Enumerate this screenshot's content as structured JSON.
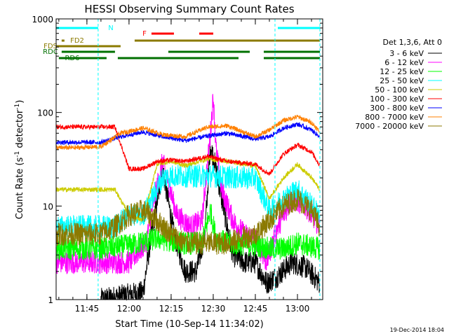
{
  "chart_data": {
    "type": "line",
    "title": "HESSI Observing Summary Count Rates",
    "xlabel": "Start Time (10-Sep-14 11:34:02)",
    "ylabel": "Count Rate (s",
    "ylabel_sup": "-1",
    "ylabel_tail": " detector",
    "ylabel_sup2": "-1",
    "ylabel_end": ")",
    "yscale": "log",
    "xlim": [
      "11:34:02",
      "13:09:00"
    ],
    "ylim": [
      1,
      1000
    ],
    "x_ticks": [
      "11:45",
      "12:00",
      "12:15",
      "12:30",
      "12:45",
      "13:00"
    ],
    "y_ticks": [
      "1",
      "10",
      "100",
      "1000"
    ],
    "legend_title": "Det 1,3,6, Att 0",
    "legend_position": "right",
    "timestamp": "19-Dec-2014 18:04",
    "flags": [
      {
        "label": "N",
        "color": "#00ffff",
        "segments": [
          [
            "11:34",
            "11:49"
          ],
          [
            "12:53",
            "13:08"
          ]
        ]
      },
      {
        "label": "F",
        "color": "#ff0000",
        "segments": [
          [
            "12:08",
            "12:16"
          ],
          [
            "12:25",
            "12:30"
          ]
        ]
      },
      {
        "label": "FD2",
        "color": "#8b7a00",
        "segments": [
          [
            "11:36",
            "11:37"
          ],
          [
            "12:02",
            "13:08"
          ]
        ]
      },
      {
        "label": "FDS",
        "color": "#8b7a00",
        "segments": [
          [
            "11:34",
            "11:57"
          ]
        ]
      },
      {
        "label": "RDC",
        "color": "#007000",
        "segments": [
          [
            "11:36",
            "11:55"
          ],
          [
            "12:14",
            "12:43"
          ],
          [
            "12:48",
            "13:08"
          ]
        ]
      },
      {
        "label": "RD6",
        "color": "#007000",
        "segments": [
          [
            "11:35",
            "11:52"
          ],
          [
            "11:56",
            "12:39"
          ],
          [
            "12:48",
            "13:08"
          ]
        ]
      }
    ],
    "gaps": [
      "11:49",
      "12:52",
      "13:08"
    ],
    "series": [
      {
        "name": "3 - 6 keV",
        "color": "#000000",
        "times": [
          "11:50",
          "12:05",
          "12:08",
          "12:12",
          "12:16",
          "12:20",
          "12:24",
          "12:27",
          "12:29",
          "12:31",
          "12:33",
          "12:37",
          "12:41",
          "12:45",
          "12:49",
          "12:53",
          "12:58",
          "13:03",
          "13:08"
        ],
        "values": [
          1.0,
          1.2,
          5,
          25,
          5,
          2,
          2,
          5,
          45,
          25,
          12,
          3,
          2.5,
          2.5,
          1.5,
          1.8,
          2.5,
          2.2,
          1.5
        ]
      },
      {
        "name": "6 - 12 keV",
        "color": "#ff00ff",
        "times": [
          "11:34",
          "11:50",
          "12:00",
          "12:06",
          "12:09",
          "12:12",
          "12:17",
          "12:22",
          "12:26",
          "12:29",
          "12:30",
          "12:31",
          "12:33",
          "12:37",
          "12:41",
          "12:45",
          "12:49",
          "12:53",
          "12:58",
          "13:03",
          "13:08"
        ],
        "values": [
          2.5,
          2.5,
          2.5,
          4,
          12,
          30,
          8,
          6,
          7,
          60,
          150,
          40,
          15,
          7,
          5,
          4.5,
          2.5,
          6,
          12,
          10,
          6
        ]
      },
      {
        "name": "12 - 25 keV",
        "color": "#00ff00",
        "times": [
          "11:34",
          "11:50",
          "12:00",
          "12:10",
          "12:20",
          "12:26",
          "12:29",
          "12:31",
          "12:35",
          "12:45",
          "12:50",
          "12:55",
          "13:00",
          "13:08"
        ],
        "values": [
          3.5,
          3.5,
          3.8,
          4.5,
          4,
          4,
          9,
          4.5,
          4,
          3.8,
          3.5,
          3.5,
          4,
          3.5
        ]
      },
      {
        "name": "25 - 50 keV",
        "color": "#00ffff",
        "times": [
          "11:34",
          "11:50",
          "11:55",
          "12:00",
          "12:05",
          "12:12",
          "12:15",
          "12:20",
          "12:30",
          "12:40",
          "12:45",
          "12:50",
          "12:55",
          "13:00",
          "13:08"
        ],
        "values": [
          6,
          6,
          6,
          8,
          8,
          20,
          21,
          21,
          21,
          20,
          20,
          9,
          12,
          15,
          8
        ]
      },
      {
        "name": "50 - 100 keV",
        "color": "#cccc00",
        "times": [
          "11:34",
          "11:50",
          "11:55",
          "12:00",
          "12:05",
          "12:10",
          "12:15",
          "12:20",
          "12:28",
          "12:35",
          "12:45",
          "12:50",
          "12:55",
          "13:00",
          "13:05",
          "13:08"
        ],
        "values": [
          15,
          15,
          15,
          8,
          7,
          28,
          30,
          27,
          32,
          30,
          27,
          12,
          20,
          28,
          20,
          15
        ]
      },
      {
        "name": "100 - 300 keV",
        "color": "#ff0000",
        "times": [
          "11:34",
          "11:50",
          "11:55",
          "12:00",
          "12:05",
          "12:10",
          "12:15",
          "12:20",
          "12:28",
          "12:35",
          "12:45",
          "12:50",
          "12:55",
          "13:00",
          "13:05",
          "13:08"
        ],
        "values": [
          70,
          70,
          70,
          25,
          25,
          30,
          31,
          30,
          34,
          30,
          28,
          22,
          36,
          45,
          38,
          27
        ]
      },
      {
        "name": "300 - 800 keV",
        "color": "#0000ff",
        "times": [
          "11:34",
          "11:40",
          "11:50",
          "11:57",
          "12:05",
          "12:12",
          "12:20",
          "12:28",
          "12:35",
          "12:45",
          "12:50",
          "12:55",
          "13:00",
          "13:05",
          "13:08"
        ],
        "values": [
          48,
          48,
          48,
          55,
          62,
          55,
          50,
          56,
          60,
          52,
          55,
          68,
          75,
          65,
          55
        ]
      },
      {
        "name": "800 - 7000 keV",
        "color": "#ff8000",
        "times": [
          "11:34",
          "11:40",
          "11:50",
          "11:57",
          "12:05",
          "12:12",
          "12:20",
          "12:28",
          "12:35",
          "12:45",
          "12:50",
          "12:55",
          "13:00",
          "13:05",
          "13:08"
        ],
        "values": [
          42,
          42,
          43,
          60,
          68,
          58,
          55,
          70,
          72,
          55,
          65,
          82,
          90,
          78,
          62
        ]
      },
      {
        "name": "7000 - 20000 keV",
        "color": "#8b7a00",
        "times": [
          "11:34",
          "11:50",
          "11:55",
          "12:00",
          "12:05",
          "12:10",
          "12:15",
          "12:20",
          "12:25",
          "12:35",
          "12:45",
          "12:50",
          "12:55",
          "13:00",
          "13:05",
          "13:08"
        ],
        "values": [
          5,
          5,
          6,
          8,
          9,
          7,
          5,
          4,
          4,
          4,
          5,
          7,
          10,
          12,
          9,
          6
        ]
      }
    ]
  }
}
